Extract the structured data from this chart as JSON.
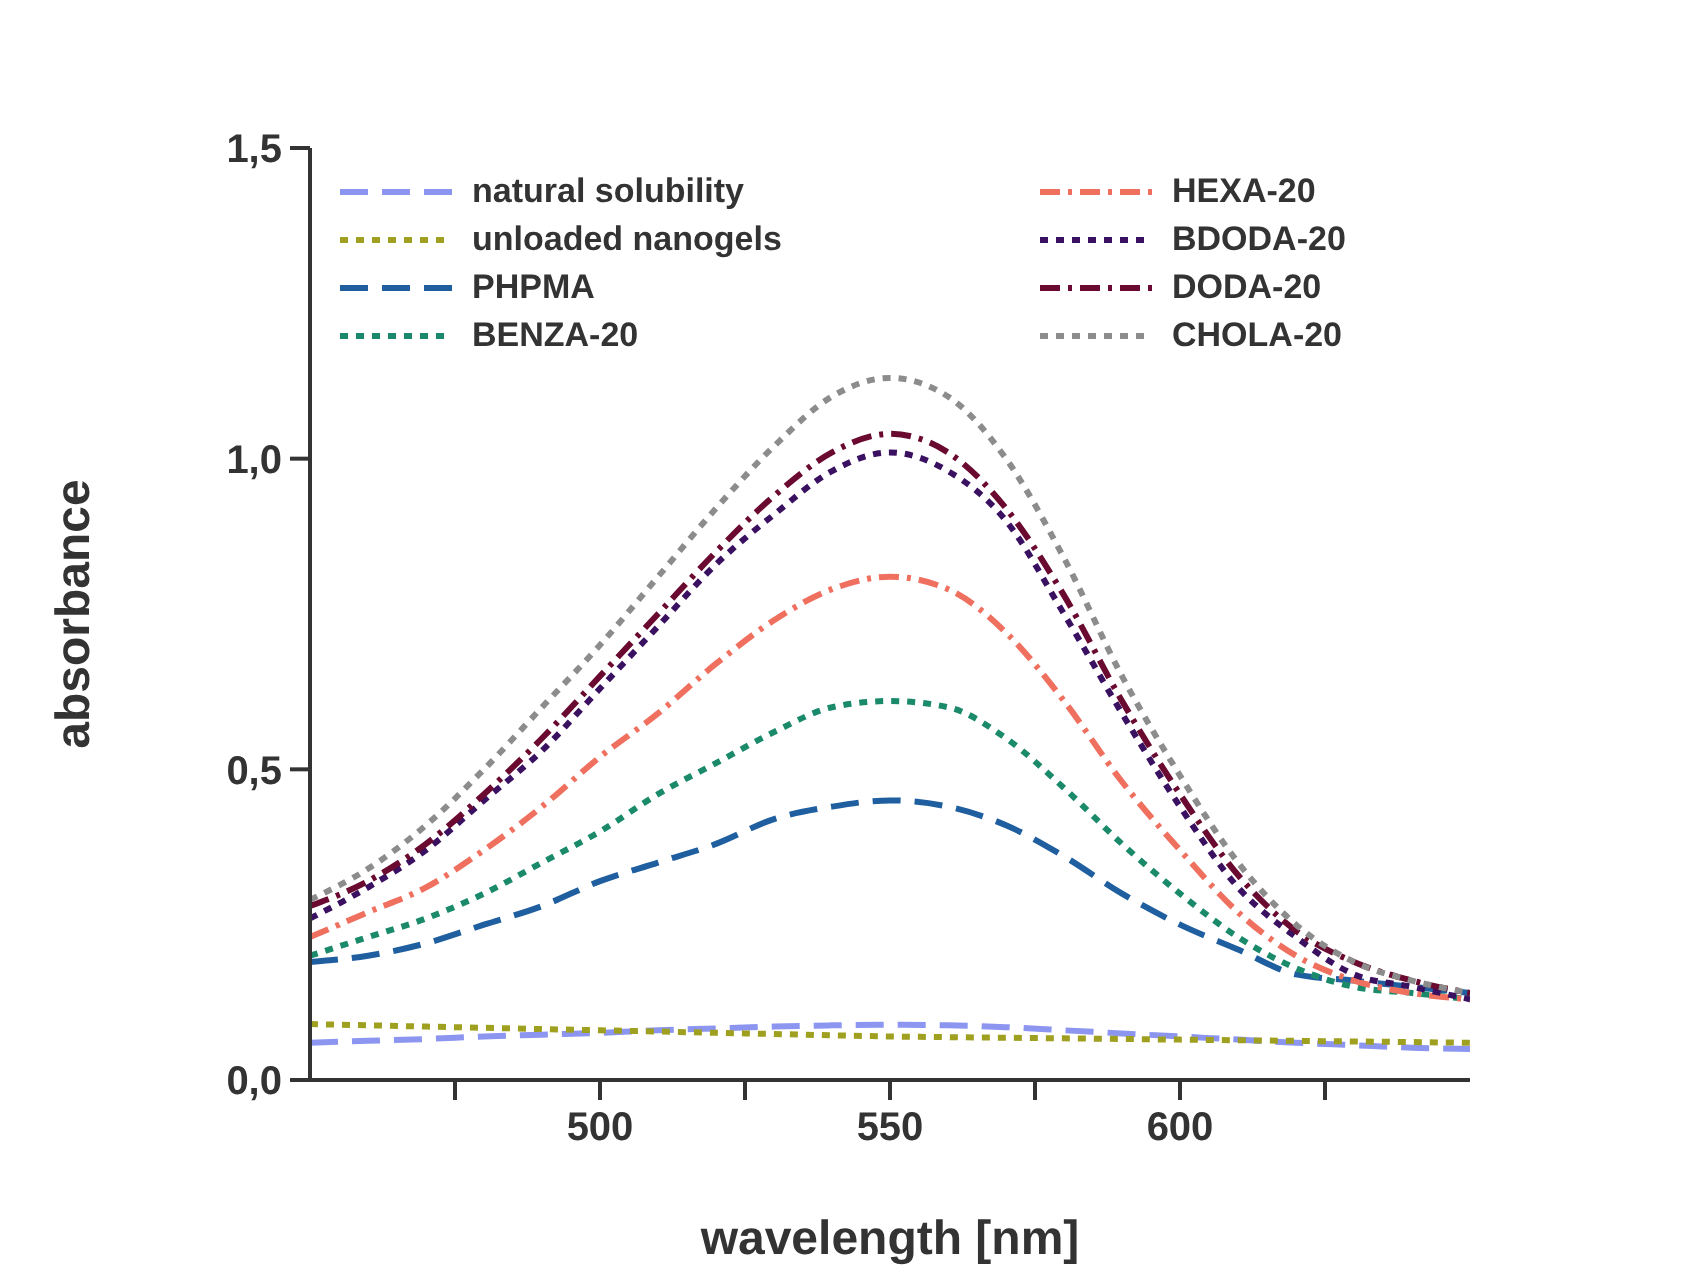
{
  "chart_data": {
    "type": "line",
    "xlabel": "wavelength [nm]",
    "ylabel": "absorbance",
    "x": [
      450,
      460,
      470,
      480,
      490,
      500,
      510,
      520,
      530,
      540,
      550,
      560,
      570,
      580,
      590,
      600,
      610,
      620,
      630,
      640,
      650
    ],
    "xlim": [
      450,
      650
    ],
    "xticks": [
      {
        "value": 475,
        "label": null
      },
      500,
      {
        "value": 525,
        "label": null
      },
      550,
      {
        "value": 575,
        "label": null
      },
      600,
      {
        "value": 625,
        "label": null
      }
    ],
    "ylim": [
      0,
      1.5
    ],
    "yticks": [
      {
        "value": 0,
        "label": "0,0"
      },
      {
        "value": 0.5,
        "label": "0,5"
      },
      {
        "value": 1,
        "label": "1,0"
      },
      {
        "value": 1.5,
        "label": "1,5"
      }
    ],
    "grid": false,
    "legend": "top",
    "marker": "none",
    "series": [
      {
        "name": "natural solubility",
        "color": "#8c96f0",
        "line_style": "dashed",
        "values": [
          0.06,
          0.063,
          0.066,
          0.07,
          0.073,
          0.076,
          0.08,
          0.083,
          0.086,
          0.088,
          0.089,
          0.088,
          0.085,
          0.08,
          0.075,
          0.07,
          0.065,
          0.06,
          0.056,
          0.052,
          0.05
        ]
      },
      {
        "name": "unloaded nanogels",
        "color": "#a0a020",
        "line_style": "dotted",
        "values": [
          0.09,
          0.088,
          0.086,
          0.084,
          0.082,
          0.08,
          0.078,
          0.076,
          0.074,
          0.072,
          0.07,
          0.069,
          0.068,
          0.067,
          0.066,
          0.065,
          0.064,
          0.063,
          0.062,
          0.061,
          0.06
        ]
      },
      {
        "name": "PHPMA",
        "color": "#1f5f9f",
        "line_style": "dashed",
        "values": [
          0.19,
          0.2,
          0.22,
          0.25,
          0.28,
          0.32,
          0.35,
          0.38,
          0.42,
          0.44,
          0.45,
          0.44,
          0.41,
          0.36,
          0.3,
          0.25,
          0.21,
          0.17,
          0.16,
          0.15,
          0.14
        ]
      },
      {
        "name": "BENZA-20",
        "color": "#1a8a6a",
        "line_style": "dotted",
        "values": [
          0.2,
          0.23,
          0.26,
          0.3,
          0.35,
          0.4,
          0.46,
          0.51,
          0.56,
          0.6,
          0.61,
          0.6,
          0.55,
          0.47,
          0.38,
          0.3,
          0.23,
          0.18,
          0.15,
          0.14,
          0.13
        ]
      },
      {
        "name": "HEXA-20",
        "color": "#f07060",
        "line_style": "dashdot",
        "values": [
          0.23,
          0.27,
          0.31,
          0.37,
          0.44,
          0.52,
          0.59,
          0.67,
          0.74,
          0.79,
          0.81,
          0.79,
          0.72,
          0.61,
          0.48,
          0.37,
          0.27,
          0.2,
          0.16,
          0.14,
          0.13
        ]
      },
      {
        "name": "BDODA-20",
        "color": "#3a1060",
        "line_style": "dotted",
        "values": [
          0.26,
          0.31,
          0.37,
          0.45,
          0.53,
          0.63,
          0.73,
          0.83,
          0.91,
          0.98,
          1.01,
          0.98,
          0.9,
          0.75,
          0.59,
          0.44,
          0.31,
          0.23,
          0.17,
          0.15,
          0.13
        ]
      },
      {
        "name": "DODA-20",
        "color": "#6a0a30",
        "line_style": "dashdot",
        "values": [
          0.28,
          0.32,
          0.38,
          0.46,
          0.55,
          0.65,
          0.75,
          0.85,
          0.94,
          1.01,
          1.04,
          1.01,
          0.92,
          0.78,
          0.61,
          0.46,
          0.33,
          0.24,
          0.19,
          0.16,
          0.14
        ]
      },
      {
        "name": "CHOLA-20",
        "color": "#8c8c8c",
        "line_style": "dotted",
        "values": [
          0.29,
          0.34,
          0.41,
          0.5,
          0.6,
          0.7,
          0.81,
          0.92,
          1.02,
          1.1,
          1.13,
          1.1,
          1.0,
          0.84,
          0.65,
          0.49,
          0.35,
          0.25,
          0.19,
          0.16,
          0.14
        ]
      }
    ]
  }
}
